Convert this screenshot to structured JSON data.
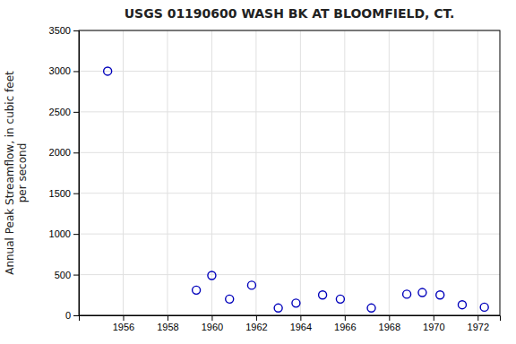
{
  "chart_data": {
    "type": "scatter",
    "title": "USGS 01190600 WASH BK AT BLOOMFIELD, CT.",
    "ylabel": "Annual Peak Streamflow, in cubic feet\nper second",
    "x": [
      1955.3,
      1959.3,
      1960.0,
      1960.8,
      1961.8,
      1963.0,
      1963.8,
      1965.0,
      1965.8,
      1967.2,
      1968.8,
      1969.5,
      1970.3,
      1971.3,
      1972.3
    ],
    "values": [
      3000,
      310,
      490,
      200,
      370,
      90,
      150,
      250,
      200,
      90,
      260,
      280,
      250,
      130,
      100
    ],
    "xlim": [
      1954,
      1973
    ],
    "ylim": [
      0,
      3500
    ],
    "xticks": [
      1956,
      1958,
      1960,
      1962,
      1964,
      1966,
      1968,
      1970,
      1972
    ],
    "yticks": [
      0,
      500,
      1000,
      1500,
      2000,
      2500,
      3000,
      3500
    ],
    "color": "#0000bb",
    "marker": "circle-open",
    "grid": true
  }
}
